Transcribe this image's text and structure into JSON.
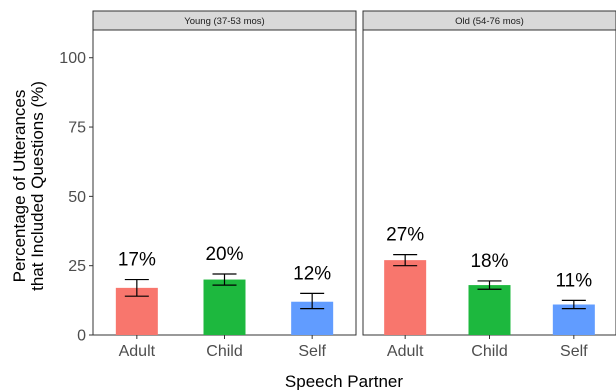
{
  "chart_data": {
    "type": "bar",
    "xlabel": "Speech Partner",
    "ylabel_lines": [
      "Percentage of Utterances",
      "that Included Questions (%)"
    ],
    "ylim": [
      0,
      110
    ],
    "yticks": [
      0,
      25,
      50,
      75,
      100
    ],
    "ytick_labels": [
      "0",
      "25",
      "50",
      "75",
      "100"
    ],
    "grid": false,
    "legend": "none",
    "categories": [
      "Adult",
      "Child",
      "Self"
    ],
    "colors": {
      "Adult": "#F8766D",
      "Child": "#1DB83E",
      "Self": "#619CFF"
    },
    "panels": [
      {
        "title": "Young (37-53 mos)",
        "values": [
          17,
          20,
          12
        ],
        "labels": [
          "17%",
          "20%",
          "12%"
        ],
        "error_low": [
          14,
          18,
          9.5
        ],
        "error_high": [
          20,
          22,
          15
        ]
      },
      {
        "title": "Old (54-76 mos)",
        "values": [
          27,
          18,
          11
        ],
        "labels": [
          "27%",
          "18%",
          "11%"
        ],
        "error_low": [
          25,
          16.5,
          9.5
        ],
        "error_high": [
          29,
          19.5,
          12.5
        ]
      }
    ]
  }
}
